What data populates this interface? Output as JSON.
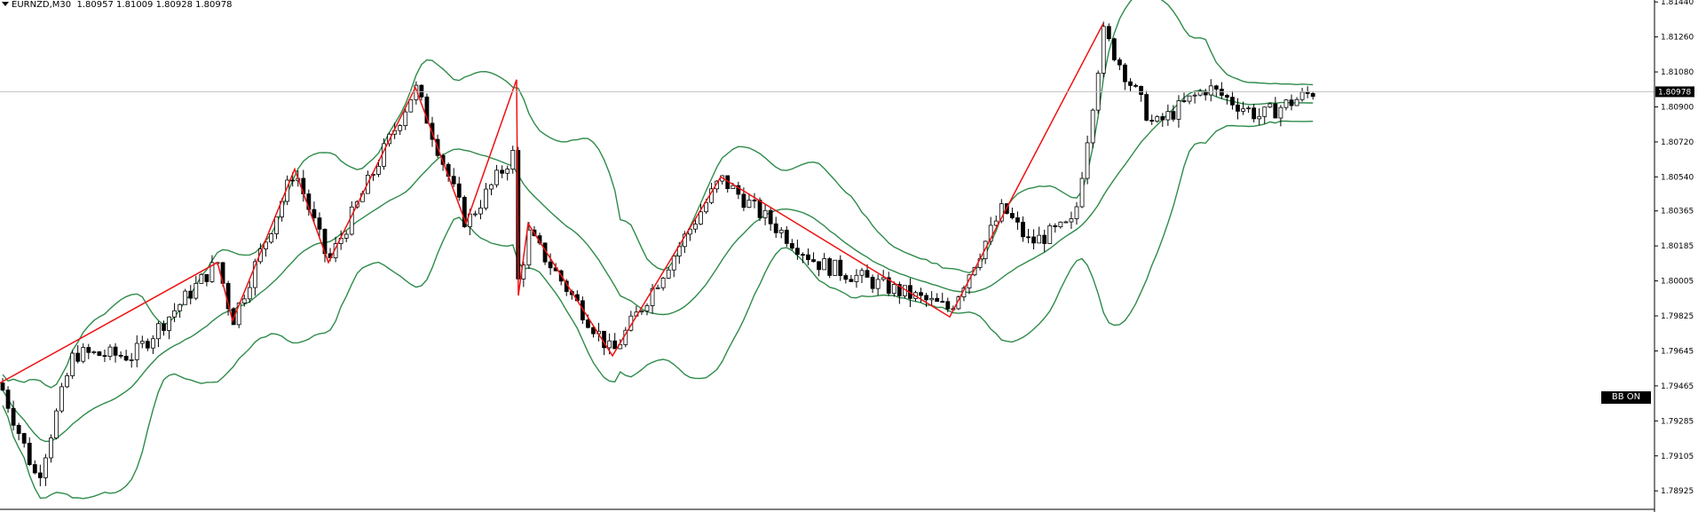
{
  "header": {
    "symbol": "EURNZD,M30",
    "ohlc": "1.80957 1.81009 1.80928 1.80978"
  },
  "indicator_badge": "BB ON",
  "colors": {
    "candle_bull_body": "#ffffff",
    "candle_bear_body": "#000000",
    "candle_outline": "#000000",
    "bollinger": "#2e8b4a",
    "zigzag": "#ee1111",
    "price_line": "#c0c0c0",
    "bid_label_bg": "#000000"
  },
  "chart_data": {
    "type": "candlestick",
    "ylim": [
      1.7883,
      1.8145
    ],
    "price_axis_ticks": [
      "1.81440",
      "1.81260",
      "1.81080",
      "1.80900",
      "1.80720",
      "1.80540",
      "1.80365",
      "1.80185",
      "1.80005",
      "1.79825",
      "1.79645",
      "1.79465",
      "1.79285",
      "1.79105",
      "1.78925"
    ],
    "current_price": 1.80978,
    "current_price_label": "1.80978",
    "indicators": [
      "Bollinger Bands",
      "ZigZag"
    ],
    "bars": 245
  }
}
